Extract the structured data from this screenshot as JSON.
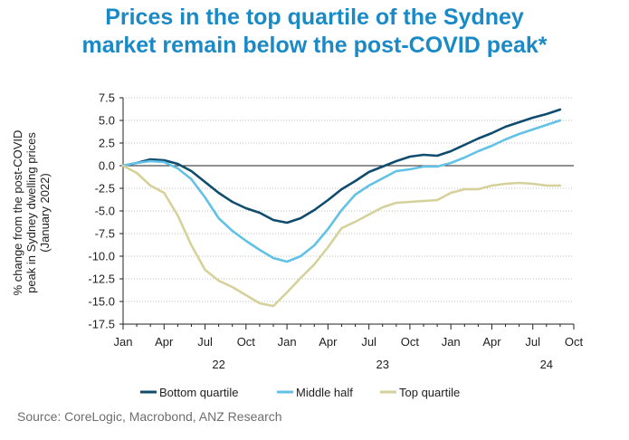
{
  "chart_data": {
    "type": "line",
    "title_lines": [
      "Prices in the top quartile of the Sydney",
      "market remain below the post-COVID peak*"
    ],
    "ylabel_lines": [
      "% change from the post-COVID",
      "peak in Sydney dwelling prices",
      "(January 2022)"
    ],
    "source": "Source: CoreLogic, Macrobond, ANZ Research",
    "ylim": [
      -17.5,
      7.5
    ],
    "yticks": [
      "7.5",
      "5.0",
      "2.5",
      "0.0",
      "-2.5",
      "-5.0",
      "-7.5",
      "-10.0",
      "-12.5",
      "-15.0",
      "-17.5"
    ],
    "x_month_labels": [
      "Jan",
      "Apr",
      "Jul",
      "Oct",
      "Jan",
      "Apr",
      "Jul",
      "Oct",
      "Jan",
      "Apr",
      "Jul",
      "Oct"
    ],
    "x_year_labels": [
      "22",
      "23",
      "24"
    ],
    "x_range_months": [
      0,
      33
    ],
    "grid": true,
    "legend_position": "bottom",
    "series": [
      {
        "name": "Bottom quartile",
        "color": "#0f4c6e",
        "x": [
          0,
          1,
          2,
          3,
          4,
          5,
          6,
          7,
          8,
          9,
          10,
          11,
          12,
          13,
          14,
          15,
          16,
          17,
          18,
          19,
          20,
          21,
          22,
          23,
          24,
          25,
          26,
          27,
          28,
          29,
          30,
          31,
          32
        ],
        "values": [
          0,
          0.3,
          0.7,
          0.6,
          0.2,
          -0.6,
          -1.8,
          -3.0,
          -4.0,
          -4.7,
          -5.2,
          -6.0,
          -6.3,
          -5.8,
          -4.9,
          -3.8,
          -2.6,
          -1.7,
          -0.7,
          -0.1,
          0.5,
          1.0,
          1.2,
          1.1,
          1.6,
          2.3,
          3.0,
          3.6,
          4.3,
          4.8,
          5.3,
          5.7,
          6.2
        ]
      },
      {
        "name": "Middle half",
        "color": "#62c2e6",
        "x": [
          0,
          1,
          2,
          3,
          4,
          5,
          6,
          7,
          8,
          9,
          10,
          11,
          12,
          13,
          14,
          15,
          16,
          17,
          18,
          19,
          20,
          21,
          22,
          23,
          24,
          25,
          26,
          27,
          28,
          29,
          30,
          31,
          32
        ],
        "values": [
          0,
          0.3,
          0.5,
          0.4,
          -0.3,
          -1.5,
          -3.5,
          -5.8,
          -7.2,
          -8.3,
          -9.3,
          -10.2,
          -10.6,
          -10.0,
          -8.8,
          -7.0,
          -4.9,
          -3.2,
          -2.2,
          -1.4,
          -0.6,
          -0.4,
          -0.1,
          -0.1,
          0.3,
          0.9,
          1.6,
          2.2,
          2.9,
          3.5,
          4.0,
          4.5,
          5.0
        ]
      },
      {
        "name": "Top quartile",
        "color": "#d6d19b",
        "x": [
          0,
          1,
          2,
          3,
          4,
          5,
          6,
          7,
          8,
          9,
          10,
          11,
          12,
          13,
          14,
          15,
          16,
          17,
          18,
          19,
          20,
          21,
          22,
          23,
          24,
          25,
          26,
          27,
          28,
          29,
          30,
          31,
          32
        ],
        "values": [
          0,
          -0.8,
          -2.2,
          -3.0,
          -5.5,
          -8.8,
          -11.5,
          -12.7,
          -13.4,
          -14.3,
          -15.2,
          -15.5,
          -14.0,
          -12.4,
          -10.9,
          -9.0,
          -6.9,
          -6.2,
          -5.4,
          -4.6,
          -4.1,
          -4.0,
          -3.9,
          -3.8,
          -3.0,
          -2.6,
          -2.6,
          -2.2,
          -2.0,
          -1.9,
          -2.0,
          -2.2,
          -2.2
        ]
      }
    ]
  }
}
